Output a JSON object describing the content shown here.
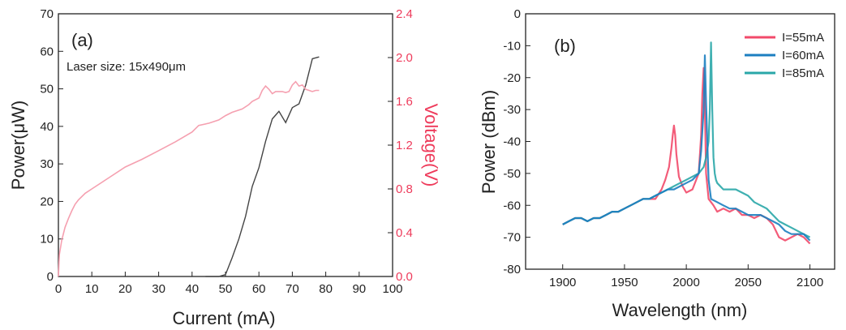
{
  "colors": {
    "axis": "#222222",
    "power_line": "#444444",
    "voltage_line": "#f5a0b0",
    "voltage_axis": "#ee3b5b",
    "s55": "#f24a6a",
    "s60": "#1c7fc0",
    "s85": "#2aa7a8"
  },
  "chart_data": [
    {
      "type": "line",
      "panel_label": "(a)",
      "annotation": "Laser size: 15x490μm",
      "xlabel": "Current (mA)",
      "ylabel": "Power(μW)",
      "y2label": "Voltage(V)",
      "xlim": [
        0,
        100
      ],
      "ylim": [
        0,
        70
      ],
      "y2lim": [
        0,
        2.4
      ],
      "xticks": [
        "0",
        "10",
        "20",
        "30",
        "40",
        "50",
        "60",
        "70",
        "80",
        "90",
        "100"
      ],
      "yticks": [
        "0",
        "10",
        "20",
        "30",
        "40",
        "50",
        "60",
        "70"
      ],
      "y2ticks": [
        "0.0",
        "0.4",
        "0.8",
        "1.2",
        "1.6",
        "2.0",
        "2.4"
      ],
      "series": [
        {
          "axis": "left",
          "x": [
            44,
            46,
            48,
            50,
            52,
            54,
            56,
            58,
            60,
            62,
            64,
            65,
            66,
            68,
            70,
            72,
            74,
            76,
            78
          ],
          "y": [
            0,
            0,
            0,
            0.5,
            5,
            10,
            16,
            24,
            29,
            36,
            42,
            43,
            44,
            41,
            45,
            46,
            51,
            58,
            58.5
          ]
        },
        {
          "axis": "right",
          "x": [
            0,
            0.3,
            1,
            2,
            3,
            4,
            5,
            6,
            8,
            10,
            15,
            20,
            25,
            30,
            35,
            40,
            42,
            45,
            48,
            50,
            52,
            55,
            57,
            58,
            60,
            61,
            62,
            63,
            64,
            65,
            66,
            67,
            68,
            69,
            70,
            71,
            72,
            73,
            74,
            75,
            76,
            77,
            78
          ],
          "y": [
            0,
            0.2,
            0.33,
            0.45,
            0.53,
            0.6,
            0.66,
            0.7,
            0.76,
            0.8,
            0.9,
            1.0,
            1.07,
            1.15,
            1.23,
            1.32,
            1.38,
            1.4,
            1.43,
            1.47,
            1.5,
            1.53,
            1.57,
            1.6,
            1.63,
            1.7,
            1.74,
            1.71,
            1.67,
            1.69,
            1.69,
            1.69,
            1.68,
            1.69,
            1.75,
            1.78,
            1.74,
            1.75,
            1.71,
            1.7,
            1.69,
            1.7,
            1.7
          ]
        }
      ]
    },
    {
      "type": "line",
      "panel_label": "(b)",
      "xlabel": "Wavelength (nm)",
      "ylabel": "Power (dBm)",
      "xlim": [
        1870,
        2120
      ],
      "ylim": [
        -80,
        0
      ],
      "xticks": [
        "1900",
        "1950",
        "2000",
        "2050",
        "2100"
      ],
      "yticks": [
        "0",
        "-10",
        "-20",
        "-30",
        "-40",
        "-50",
        "-60",
        "-70",
        "-80"
      ],
      "series": [
        {
          "name": "I=55mA",
          "x": [
            1900,
            1905,
            1910,
            1915,
            1920,
            1925,
            1930,
            1935,
            1940,
            1945,
            1950,
            1955,
            1960,
            1965,
            1970,
            1975,
            1980,
            1983,
            1986,
            1988,
            1989,
            1990,
            1991,
            1992,
            1994,
            1997,
            2000,
            2005,
            2010,
            2012,
            2013,
            2014,
            2015,
            2016,
            2018,
            2020,
            2022,
            2025,
            2030,
            2035,
            2040,
            2045,
            2050,
            2055,
            2060,
            2065,
            2070,
            2075,
            2080,
            2085,
            2090,
            2095,
            2100
          ],
          "y": [
            -66,
            -65,
            -64,
            -64,
            -65,
            -64,
            -64,
            -63,
            -62,
            -62,
            -61,
            -60,
            -59,
            -58,
            -58,
            -58,
            -55,
            -52,
            -48,
            -42,
            -38,
            -35,
            -38,
            -44,
            -51,
            -54,
            -56,
            -55,
            -50,
            -38,
            -25,
            -17,
            -30,
            -50,
            -58,
            -59,
            -60,
            -62,
            -61,
            -62,
            -61,
            -63,
            -63,
            -64,
            -63,
            -64,
            -66,
            -70,
            -71,
            -70,
            -69,
            -70,
            -72
          ]
        },
        {
          "name": "I=60mA",
          "x": [
            1900,
            1905,
            1910,
            1915,
            1920,
            1925,
            1930,
            1935,
            1940,
            1945,
            1950,
            1955,
            1960,
            1965,
            1970,
            1975,
            1980,
            1985,
            1990,
            1995,
            2000,
            2005,
            2010,
            2012,
            2014,
            2015,
            2016,
            2017,
            2018,
            2020,
            2025,
            2030,
            2035,
            2040,
            2045,
            2050,
            2055,
            2060,
            2065,
            2070,
            2075,
            2080,
            2085,
            2090,
            2095,
            2100
          ],
          "y": [
            -66,
            -65,
            -64,
            -64,
            -65,
            -64,
            -64,
            -63,
            -62,
            -62,
            -61,
            -60,
            -59,
            -58,
            -58,
            -57,
            -56,
            -55,
            -55,
            -54,
            -53,
            -52,
            -50,
            -43,
            -30,
            -13,
            -28,
            -40,
            -52,
            -58,
            -59,
            -60,
            -61,
            -61,
            -62,
            -63,
            -63,
            -63,
            -64,
            -65,
            -66,
            -68,
            -69,
            -69,
            -69,
            -71
          ]
        },
        {
          "name": "I=85mA",
          "x": [
            1900,
            1905,
            1910,
            1915,
            1920,
            1925,
            1930,
            1935,
            1940,
            1945,
            1950,
            1955,
            1960,
            1965,
            1970,
            1975,
            1980,
            1985,
            1990,
            1995,
            2000,
            2005,
            2010,
            2014,
            2016,
            2018,
            2019,
            2020,
            2021,
            2022,
            2023,
            2024,
            2025,
            2030,
            2035,
            2040,
            2045,
            2050,
            2055,
            2060,
            2065,
            2070,
            2075,
            2080,
            2085,
            2090,
            2095,
            2100
          ],
          "y": [
            -66,
            -65,
            -64,
            -64,
            -65,
            -64,
            -64,
            -63,
            -62,
            -62,
            -61,
            -60,
            -59,
            -58,
            -58,
            -57,
            -56,
            -55,
            -54,
            -53,
            -52,
            -51,
            -50,
            -48,
            -45,
            -40,
            -30,
            -9,
            -30,
            -45,
            -50,
            -52,
            -53,
            -55,
            -55,
            -55,
            -56,
            -57,
            -59,
            -60,
            -61,
            -63,
            -65,
            -66,
            -67,
            -68,
            -69,
            -70
          ]
        }
      ],
      "legend": "top-right"
    }
  ]
}
